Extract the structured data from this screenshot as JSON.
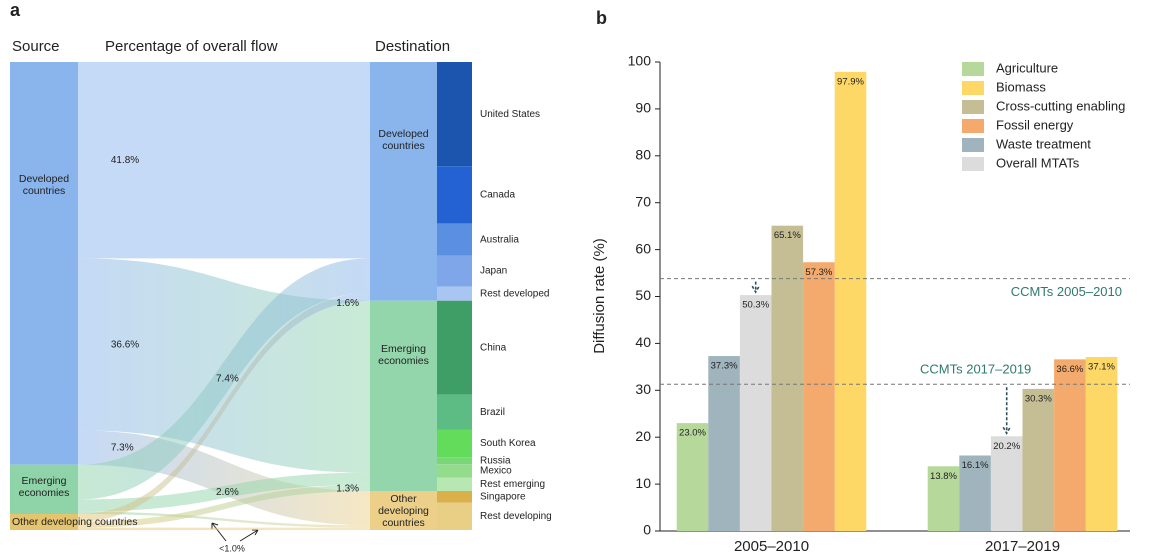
{
  "chart_data": [
    {
      "type": "sankey",
      "panel_label": "a",
      "headers": [
        "Source",
        "Percentage of overall flow",
        "Destination"
      ],
      "sources": [
        {
          "name": "Developed countries",
          "color": "#8ab4ec"
        },
        {
          "name": "Emerging economies",
          "color": "#8fd3a8"
        },
        {
          "name": "Other developing countries",
          "color": "#e5c46e"
        }
      ],
      "destinations": [
        {
          "name": "Developed countries",
          "color": "#8ab4ec",
          "countries": [
            {
              "name": "United States",
              "value": 22.2,
              "color": "#1c55ad"
            },
            {
              "name": "Canada",
              "value": 12.2,
              "color": "#2462d3"
            },
            {
              "name": "Australia",
              "value": 6.8,
              "color": "#5a8fe2"
            },
            {
              "name": "Japan",
              "value": 6.6,
              "color": "#7fa6e9"
            },
            {
              "name": "Rest developed",
              "value": 3.0,
              "color": "#a9c5f1"
            }
          ]
        },
        {
          "name": "Emerging economies",
          "color": "#93d6ab",
          "countries": [
            {
              "name": "China",
              "value": 20.0,
              "color": "#3f9e65"
            },
            {
              "name": "Brazil",
              "value": 7.5,
              "color": "#5dbb84"
            },
            {
              "name": "South Korea",
              "value": 5.8,
              "color": "#63dc5c"
            },
            {
              "name": "Russia",
              "value": 1.5,
              "color": "#79d777"
            },
            {
              "name": "Mexico",
              "value": 2.9,
              "color": "#92dc8c"
            },
            {
              "name": "Rest emerging",
              "value": 2.8,
              "color": "#b8e8b1"
            }
          ]
        },
        {
          "name": "Other developing countries",
          "color": "#ecd08a",
          "countries": [
            {
              "name": "Singapore",
              "value": 2.5,
              "color": "#d9b04a"
            },
            {
              "name": "Rest developing",
              "value": 5.8,
              "color": "#e9cf85"
            }
          ]
        }
      ],
      "flows": [
        {
          "from": "Developed countries",
          "to": "Developed countries",
          "value": 41.8,
          "label": "41.8%"
        },
        {
          "from": "Developed countries",
          "to": "Emerging economies",
          "value": 36.6,
          "label": "36.6%"
        },
        {
          "from": "Developed countries",
          "to": "Other developing countries",
          "value": 7.3,
          "label": "7.3%"
        },
        {
          "from": "Emerging economies",
          "to": "Developed countries",
          "value": 7.4,
          "label": "7.4%"
        },
        {
          "from": "Emerging economies",
          "to": "Emerging economies",
          "value": 2.6,
          "label": "2.6%"
        },
        {
          "from": "Emerging economies",
          "to": "Other developing countries",
          "value": 0.5
        },
        {
          "from": "Other developing countries",
          "to": "Developed countries",
          "value": 1.6,
          "label": "1.6%"
        },
        {
          "from": "Other developing countries",
          "to": "Emerging economies",
          "value": 1.3,
          "label": "1.3%"
        },
        {
          "from": "Other developing countries",
          "to": "Other developing countries",
          "value": 0.5
        }
      ],
      "annotation": "<1.0%"
    },
    {
      "type": "bar",
      "panel_label": "b",
      "y_label": "Diffusion rate (%)",
      "categories": [
        "2005–2010",
        "2017–2019"
      ],
      "series": [
        {
          "name": "Agriculture",
          "color": "#b6d89b",
          "values": [
            23.0,
            13.8
          ],
          "value_labels": [
            "23.0%",
            "13.8%"
          ]
        },
        {
          "name": "Biomass",
          "color": "#fdd866",
          "values": [
            97.9,
            37.1
          ],
          "value_labels": [
            "97.9%",
            "37.1%"
          ]
        },
        {
          "name": "Cross-cutting enabling",
          "color": "#c5bd93",
          "values": [
            65.1,
            30.3
          ],
          "value_labels": [
            "65.1%",
            "30.3%"
          ]
        },
        {
          "name": "Fossil energy",
          "color": "#f4aa6c",
          "values": [
            57.3,
            36.6
          ],
          "value_labels": [
            "57.3%",
            "36.6%"
          ]
        },
        {
          "name": "Waste treatment",
          "color": "#9fb4bc",
          "values": [
            37.3,
            16.1
          ],
          "value_labels": [
            "37.3%",
            "16.1%"
          ]
        },
        {
          "name": "Overall MTATs",
          "color": "#dcdcdc",
          "values": [
            50.3,
            20.2
          ],
          "value_labels": [
            "50.3%",
            "20.2%"
          ]
        }
      ],
      "ylim": [
        0,
        100
      ],
      "yticks": [
        0,
        10,
        20,
        30,
        40,
        50,
        60,
        70,
        80,
        90,
        100
      ],
      "reference_lines": [
        {
          "value": 53.8,
          "label": "CCMTs 2005–2010"
        },
        {
          "value": 31.3,
          "label": "CCMTs 2017–2019"
        }
      ]
    }
  ]
}
